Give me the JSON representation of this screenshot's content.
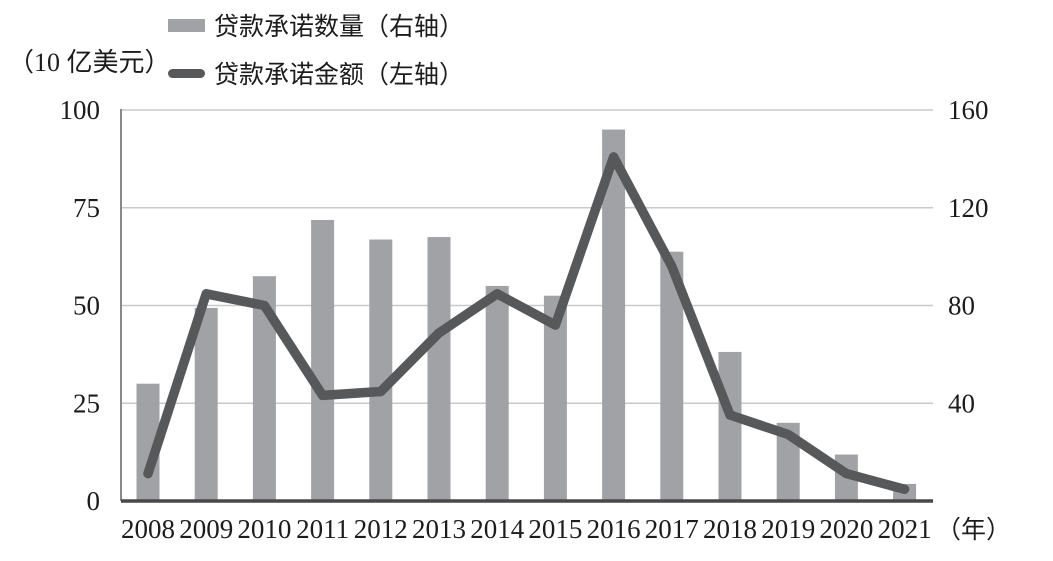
{
  "figure": {
    "unit_label": "（10 亿美元）",
    "year_suffix": "（年）"
  },
  "legend": [
    {
      "type": "bar",
      "label": "贷款承诺数量（右轴）"
    },
    {
      "type": "line",
      "label": "贷款承诺金额（左轴）"
    }
  ],
  "colors": {
    "bar": "#a0a2a5",
    "line": "#57585a",
    "grid": "#c8c9ca",
    "axis_left": "#88898b",
    "axis_bottom": "#48484a",
    "text": "#1c1c1c",
    "background": "#ffffff"
  },
  "chart_data": {
    "type": "bar",
    "subtype": "bar+line dual axis",
    "title": "",
    "xlabel": "（年）",
    "categories": [
      "2008",
      "2009",
      "2010",
      "2011",
      "2012",
      "2013",
      "2014",
      "2015",
      "2016",
      "2017",
      "2018",
      "2019",
      "2020",
      "2021"
    ],
    "series": [
      {
        "name": "贷款承诺数量（右轴）",
        "type": "bar",
        "axis": "right",
        "values": [
          48,
          79,
          92,
          115,
          107,
          108,
          88,
          84,
          152,
          102,
          61,
          32,
          19,
          7
        ]
      },
      {
        "name": "贷款承诺金额（左轴）",
        "type": "line",
        "axis": "left",
        "values": [
          7,
          53,
          50,
          27,
          28,
          43,
          53,
          45,
          88,
          60,
          22,
          17,
          7,
          3
        ]
      }
    ],
    "left_axis": {
      "label": "（10 亿美元）",
      "range": [
        0,
        100
      ],
      "ticks": [
        0,
        25,
        50,
        75,
        100
      ]
    },
    "right_axis": {
      "label": "",
      "range": [
        0,
        160
      ],
      "ticks": [
        40,
        80,
        120,
        160
      ]
    },
    "grid": true,
    "legend_position": "top-left"
  }
}
